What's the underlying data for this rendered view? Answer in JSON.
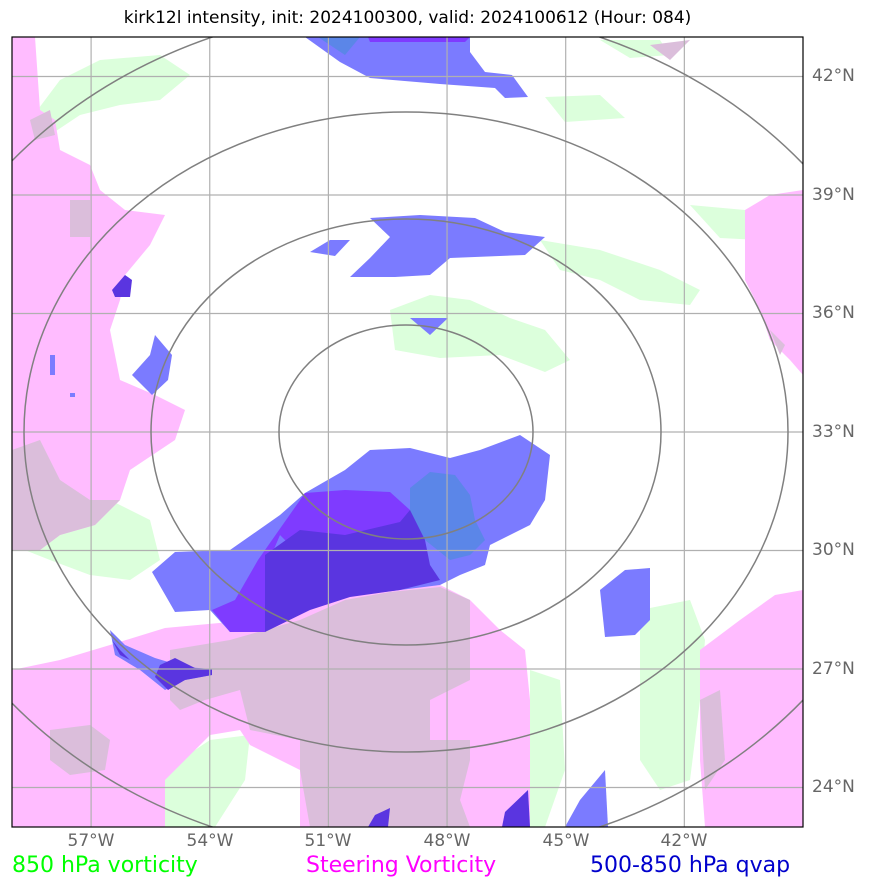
{
  "title": "kirk12l intensity, init: 2024100300, valid: 2024100612 (Hour: 084)",
  "map": {
    "lon_range": [
      -59,
      -39
    ],
    "lat_range": [
      23,
      43
    ],
    "lon_labels": [
      "57°W",
      "54°W",
      "51°W",
      "48°W",
      "45°W",
      "42°W"
    ],
    "lat_labels": [
      "42°N",
      "39°N",
      "36°N",
      "33°N",
      "30°N",
      "27°N",
      "24°N"
    ]
  },
  "legend": [
    {
      "label": "850 hPa vorticity",
      "color": "#00ff00"
    },
    {
      "label": "Steering Vorticity",
      "color": "#ff00ff"
    },
    {
      "label": "500-850 hPa qvap",
      "color": "#0000cc"
    }
  ],
  "colors": {
    "vort850": "#dcffdc",
    "steering": "#ffbcff",
    "overlap": "#dbbedb",
    "qvap": "#7b7bff",
    "qvap_dark": "#5a35e0",
    "qvap_violet": "#7f3bff",
    "qvap_teal": "#5b86e8",
    "rings": "#808080",
    "grid": "#b0b0b0"
  }
}
